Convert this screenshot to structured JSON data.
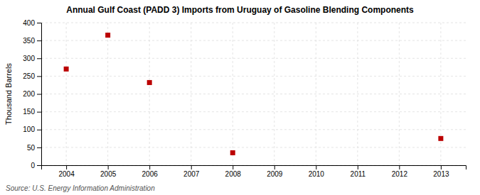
{
  "chart_data": {
    "type": "scatter",
    "title": "Annual Gulf Coast (PADD 3) Imports from Uruguay of Gasoline Blending Components",
    "y_label": "Thousand Barrels",
    "annotations": [
      "Source: U.S. Energy Information Administration"
    ],
    "x": [
      2004,
      2005,
      2006,
      2008,
      2013
    ],
    "values": [
      270,
      365,
      232,
      35,
      75
    ],
    "color": "#bb0000",
    "marker": "square",
    "xlim": [
      2003.4,
      2013.6
    ],
    "xticks": [
      2004,
      2005,
      2006,
      2007,
      2008,
      2009,
      2010,
      2011,
      2012,
      2013
    ],
    "ylim": [
      0,
      400
    ],
    "yticks": [
      0,
      50,
      100,
      150,
      200,
      250,
      300,
      350,
      400
    ],
    "grid": true
  }
}
